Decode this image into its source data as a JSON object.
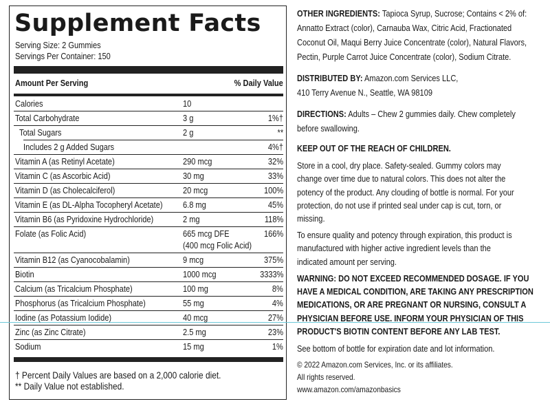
{
  "panel": {
    "title": "Supplement Facts",
    "serving_size": "Serving Size: 2 Gummies",
    "servings_per_container": "Servings Per Container: 150",
    "header": {
      "amount": "Amount Per Serving",
      "dv": "% Daily Value"
    },
    "rows": [
      {
        "label": "Calories",
        "amount": [
          "10"
        ],
        "dv": ""
      },
      {
        "label": "Total Carbohydrate",
        "amount": [
          "3 g"
        ],
        "dv": "1%†"
      },
      {
        "label": "Total Sugars",
        "amount": [
          "2 g"
        ],
        "dv": "**"
      },
      {
        "label": "Includes 2 g Added Sugars",
        "amount": [],
        "dv": "4%†"
      },
      {
        "label": "Vitamin A (as Retinyl Acetate)",
        "amount": [
          "290 mcg"
        ],
        "dv": "32%"
      },
      {
        "label": "Vitamin C (as Ascorbic Acid)",
        "amount": [
          "30 mg"
        ],
        "dv": "33%"
      },
      {
        "label": "Vitamin D (as Cholecalciferol)",
        "amount": [
          "20 mcg"
        ],
        "dv": "100%"
      },
      {
        "label": "Vitamin E (as DL-Alpha Tocopheryl Acetate)",
        "amount": [
          "6.8 mg"
        ],
        "dv": "45%"
      },
      {
        "label": "Vitamin B6 (as Pyridoxine Hydrochloride)",
        "amount": [
          "2 mg"
        ],
        "dv": "118%"
      },
      {
        "label": "Folate (as Folic Acid)",
        "amount": [
          "665 mcg DFE",
          "(400 mcg Folic Acid)"
        ],
        "dv": "166%"
      },
      {
        "label": "Vitamin B12 (as Cyanocobalamin)",
        "amount": [
          "9 mcg"
        ],
        "dv": "375%"
      },
      {
        "label": "Biotin",
        "amount": [
          "1000 mcg"
        ],
        "dv": "3333%"
      },
      {
        "label": "Calcium (as Tricalcium Phosphate)",
        "amount": [
          "100 mg"
        ],
        "dv": "8%"
      },
      {
        "label": "Phosphorus (as Tricalcium Phosphate)",
        "amount": [
          "55 mg"
        ],
        "dv": "4%"
      },
      {
        "label": "Iodine (as Potassium Iodide)",
        "amount": [
          "40 mcg"
        ],
        "dv": "27%"
      },
      {
        "label": "Zinc (as Zinc Citrate)",
        "amount": [
          "2.5 mg"
        ],
        "dv": "23%"
      },
      {
        "label": "Sodium",
        "amount": [
          "15 mg"
        ],
        "dv": "1%"
      }
    ],
    "footnotes": [
      "† Percent Daily Values are based on a 2,000 calorie diet.",
      "** Daily Value not established."
    ]
  },
  "info": [
    {
      "lead": "OTHER INGREDIENTS:",
      "lines": [
        " Tapioca Syrup, Sucrose; Contains < 2% of:",
        "Annatto Extract (color), Carnauba Wax, Citric Acid, Fractionated",
        "Coconut Oil, Maqui Berry Juice Concentrate (color), Natural Flavors,",
        "Pectin, Purple Carrot Juice Concentrate (color), Sodium Citrate."
      ]
    },
    {
      "lead": "DISTRIBUTED BY:",
      "lines": [
        " Amazon.com Services LLC,",
        "410 Terry Avenue N., Seattle, WA 98109"
      ]
    },
    {
      "lead": "DIRECTIONS:",
      "lines": [
        " Adults – Chew 2 gummies daily. Chew completely",
        "before swallowing."
      ]
    },
    {
      "lead": "KEEP OUT OF THE REACH OF CHILDREN.",
      "lines": []
    },
    {
      "lines": [
        "Store in a cool, dry place. Safety-sealed. Gummy colors may",
        "change over time due to natural colors. This does not alter the",
        "potency of the product. Any clouding of bottle is normal. For your",
        "protection, do not use if printed seal under cap is cut, torn, or",
        "missing."
      ]
    },
    {
      "lines": [
        "To ensure quality and potency through expiration, this product is",
        "manufactured with higher active ingredient levels than the",
        "indicated amount per serving."
      ]
    },
    {
      "bold_lines": [
        "WARNING:  DO NOT EXCEED RECOMMENDED DOSAGE. IF YOU",
        "HAVE A MEDICAL CONDITION, ARE TAKING ANY PRESCRIPTION",
        "MEDICATIONS, OR ARE PREGNANT OR NURSING, CONSULT A",
        "PHYSICIAN BEFORE USE. INFORM YOUR PHYSICIAN OF THIS",
        "PRODUCT'S BIOTIN CONTENT BEFORE ANY LAB TEST."
      ]
    },
    {
      "lines": [
        "See bottom of bottle for expiration date and lot information."
      ]
    },
    {
      "small_lines": [
        "© 2022 Amazon.com Services, Inc. or its affiliates.",
        "All rights reserved.",
        "www.amazon.com/amazonbasics"
      ]
    }
  ]
}
